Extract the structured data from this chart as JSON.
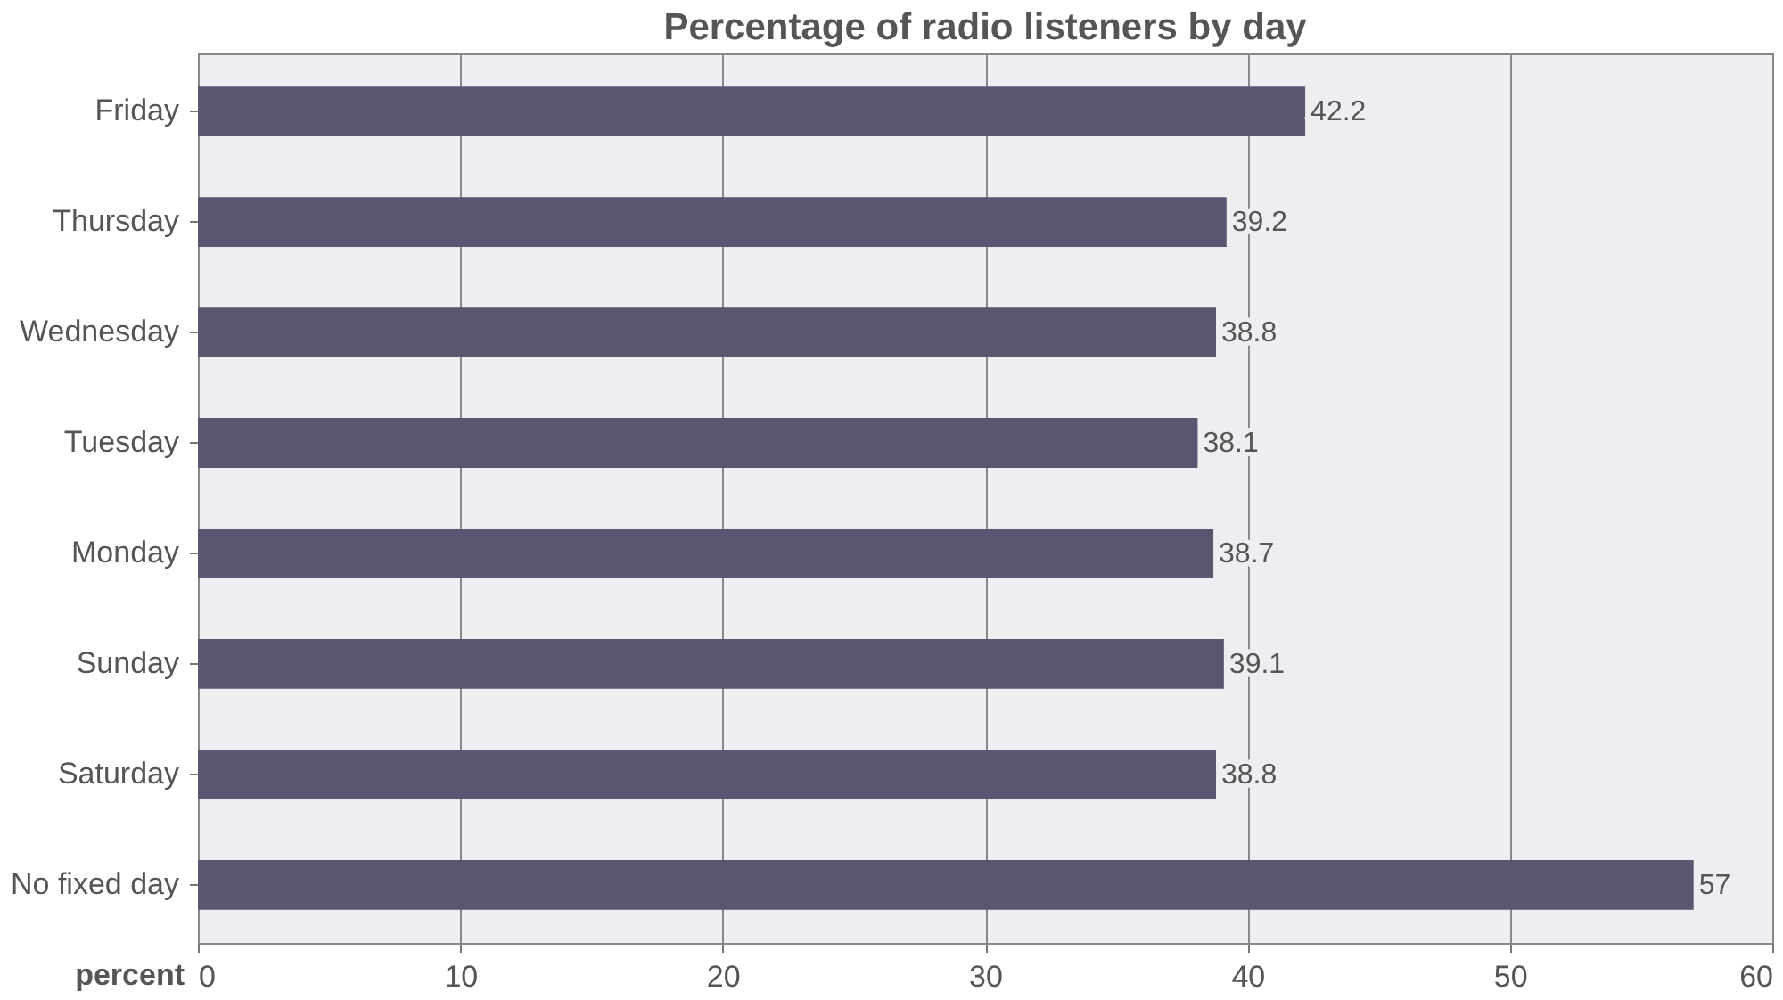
{
  "chart_data": {
    "type": "bar",
    "orientation": "horizontal",
    "title": "Percentage of radio listeners by day",
    "xlabel": "percent",
    "categories": [
      "Friday",
      "Thursday",
      "Wednesday",
      "Tuesday",
      "Monday",
      "Sunday",
      "Saturday",
      "No fixed day"
    ],
    "values": [
      42.2,
      39.2,
      38.8,
      38.1,
      38.7,
      39.1,
      38.8,
      57
    ],
    "color": "#5a5670",
    "xlim": [
      0,
      60
    ],
    "xticks": [
      0,
      10,
      20,
      30,
      40,
      50,
      60
    ],
    "grid": "x",
    "data_labels": true
  }
}
